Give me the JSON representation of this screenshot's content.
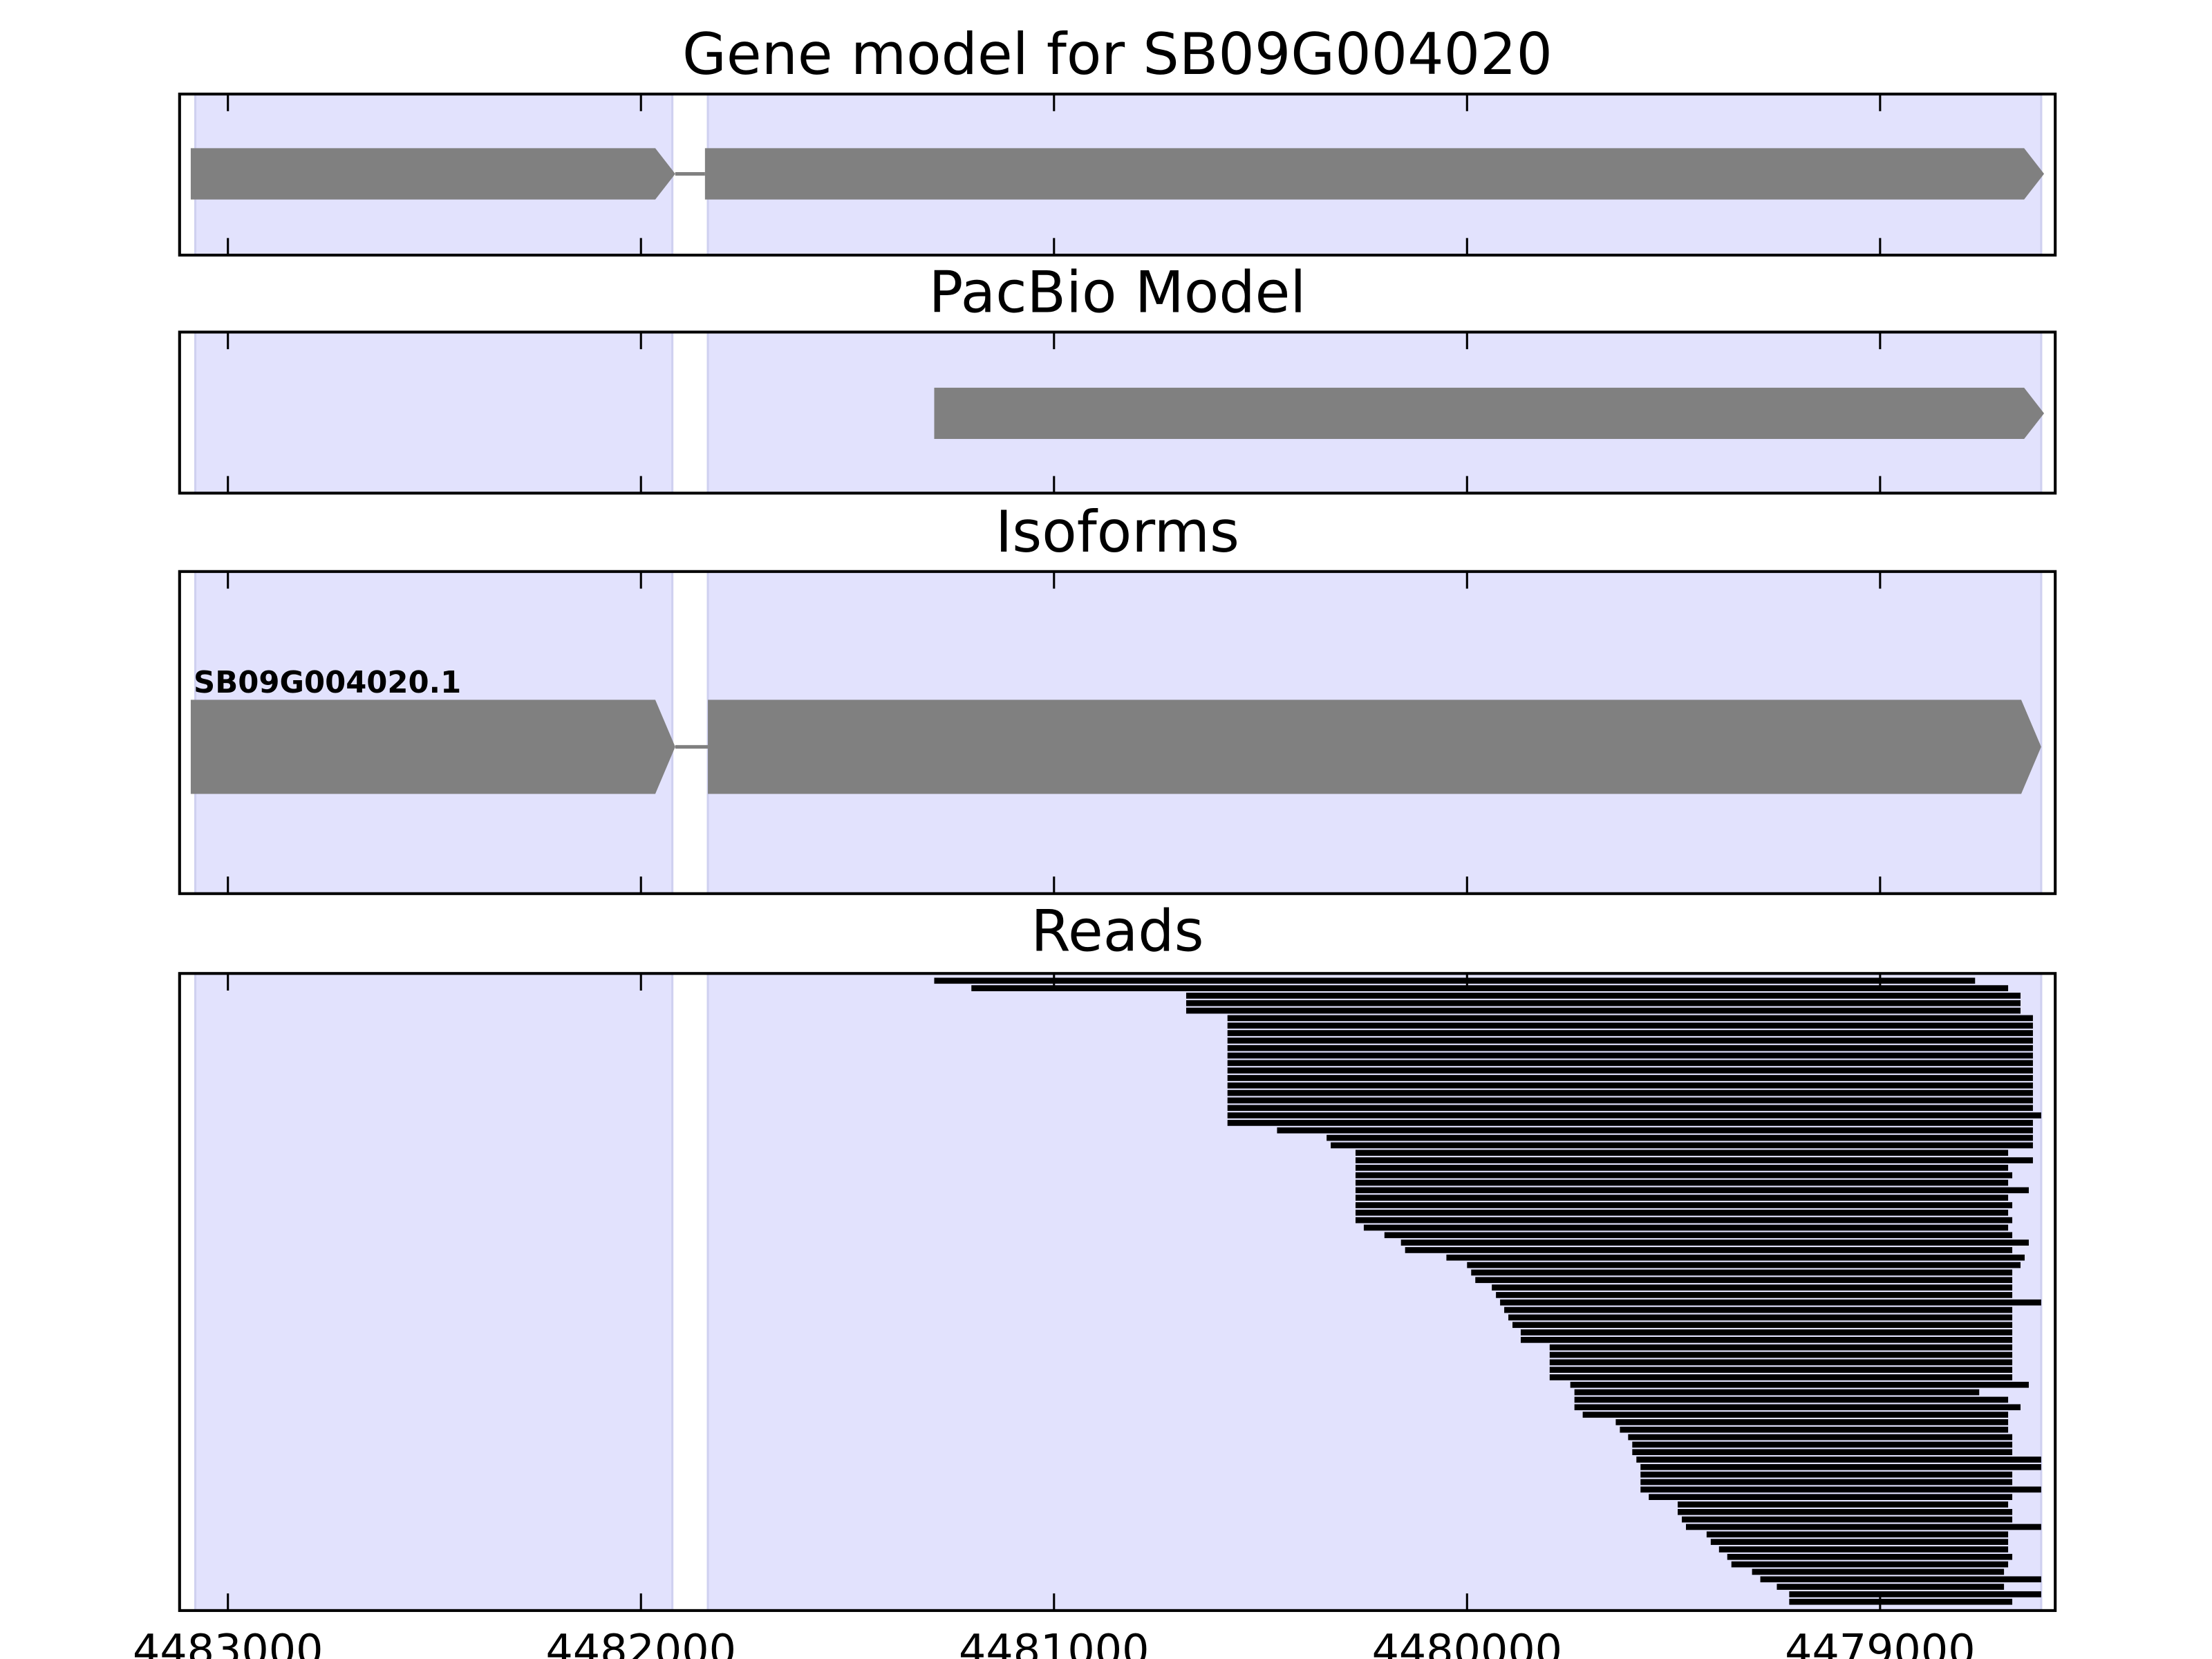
{
  "chart_data": {
    "type": "gene-tracks",
    "xlim": [
      4483117,
      4478576
    ],
    "xticks": [
      4483000,
      4482000,
      4481000,
      4480000,
      4479000
    ],
    "shade_color": "#e2e2fd",
    "feature_color": "#808080",
    "read_color": "#000000",
    "shaded": [
      {
        "start": 4483079,
        "end": 4481924
      },
      {
        "start": 4481838,
        "end": 4478610
      }
    ],
    "panels": [
      {
        "title": "Gene model for SB09G004020",
        "exons": [
          {
            "start": 4483090,
            "end": 4481917
          },
          {
            "start": 4481845,
            "end": 4478603
          }
        ]
      },
      {
        "title": "PacBio Model",
        "exons": [
          {
            "start": 4481290,
            "end": 4478603
          }
        ]
      },
      {
        "title": "Isoforms",
        "isoforms": [
          {
            "name": "SB09G004020.1",
            "exons": [
              {
                "start": 4483090,
                "end": 4481917
              },
              {
                "start": 4481838,
                "end": 4478610
              }
            ]
          }
        ]
      },
      {
        "title": "Reads",
        "reads": {
          "starts": [
            4481290,
            4481200,
            4480680,
            4480680,
            4480680,
            4480580,
            4480580,
            4480580,
            4480580,
            4480580,
            4480580,
            4480580,
            4480580,
            4480580,
            4480580,
            4480580,
            4480580,
            4480580,
            4480580,
            4480580,
            4480460,
            4480340,
            4480330,
            4480270,
            4480270,
            4480270,
            4480270,
            4480270,
            4480270,
            4480270,
            4480270,
            4480270,
            4480270,
            4480250,
            4480200,
            4480160,
            4480150,
            4480050,
            4480000,
            4479990,
            4479980,
            4479940,
            4479930,
            4479920,
            4479910,
            4479900,
            4479890,
            4479870,
            4479870,
            4479800,
            4479800,
            4479800,
            4479800,
            4479800,
            4479750,
            4479740,
            4479740,
            4479740,
            4479720,
            4479640,
            4479630,
            4479610,
            4479600,
            4479600,
            4479590,
            4479580,
            4479580,
            4479580,
            4479580,
            4479560,
            4479490,
            4479490,
            4479480,
            4479470,
            4479420,
            4479410,
            4479390,
            4479370,
            4479360,
            4479310,
            4479290,
            4479250,
            4479220,
            4479220
          ],
          "ends": [
            4478770,
            4478690,
            4478660,
            4478660,
            4478660,
            4478630,
            4478630,
            4478630,
            4478630,
            4478630,
            4478630,
            4478630,
            4478630,
            4478630,
            4478630,
            4478630,
            4478630,
            4478630,
            4478610,
            4478630,
            4478630,
            4478630,
            4478630,
            4478690,
            4478630,
            4478690,
            4478680,
            4478690,
            4478640,
            4478690,
            4478680,
            4478690,
            4478680,
            4478690,
            4478680,
            4478640,
            4478680,
            4478650,
            4478660,
            4478680,
            4478680,
            4478680,
            4478680,
            4478610,
            4478680,
            4478680,
            4478680,
            4478680,
            4478680,
            4478680,
            4478680,
            4478680,
            4478680,
            4478680,
            4478640,
            4478760,
            4478690,
            4478660,
            4478690,
            4478690,
            4478690,
            4478680,
            4478680,
            4478680,
            4478610,
            4478610,
            4478680,
            4478680,
            4478610,
            4478680,
            4478690,
            4478680,
            4478680,
            4478610,
            4478690,
            4478690,
            4478690,
            4478680,
            4478690,
            4478700,
            4478610,
            4478700,
            4478610,
            4478680
          ]
        }
      }
    ]
  }
}
